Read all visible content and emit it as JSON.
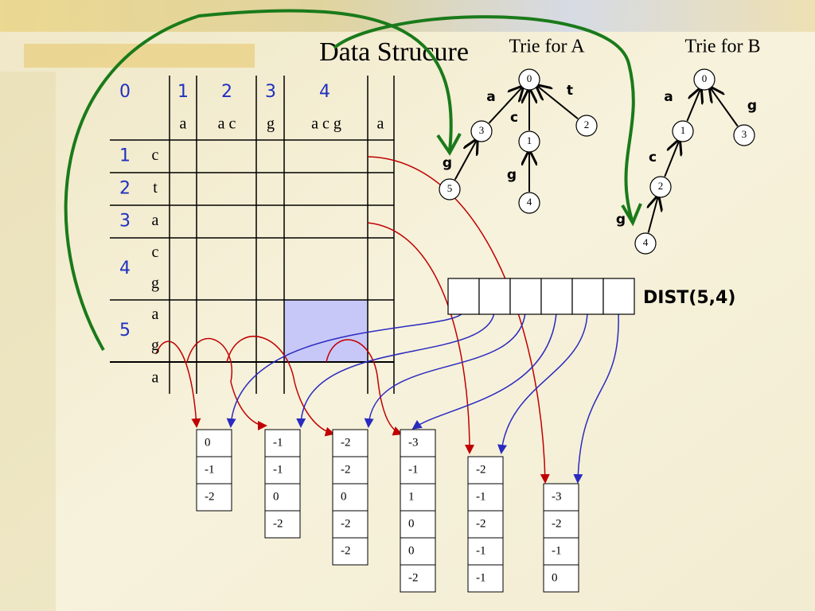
{
  "title": "Data Strucure",
  "table": {
    "column_numbers": [
      0,
      1,
      2,
      3,
      4
    ],
    "column_strings": [
      "a",
      "a c",
      "g",
      "a c g",
      "a"
    ],
    "rows": [
      {
        "number": 1,
        "chars": [
          "c"
        ]
      },
      {
        "number": 2,
        "chars": [
          "t"
        ]
      },
      {
        "number": 3,
        "chars": [
          "a"
        ]
      },
      {
        "number": 4,
        "chars": [
          "c",
          "g"
        ]
      },
      {
        "number": 5,
        "chars": [
          "a",
          "g"
        ]
      }
    ],
    "footer": "a"
  },
  "trie_a": {
    "title": "Trie for A",
    "nodes": [
      0,
      1,
      2,
      3,
      4,
      5
    ],
    "edge_labels": [
      "a",
      "t",
      "c",
      "g",
      "g"
    ]
  },
  "trie_b": {
    "title": "Trie for B",
    "nodes": [
      0,
      1,
      2,
      3,
      4
    ],
    "edge_labels": [
      "a",
      "g",
      "c",
      "g"
    ]
  },
  "dist_label": "DIST(5,4)",
  "vectors": [
    [
      0,
      -1,
      -2
    ],
    [
      -1,
      -1,
      0,
      -2
    ],
    [
      -2,
      -2,
      0,
      -2,
      -2
    ],
    [
      -3,
      -1,
      1,
      0,
      0,
      -2
    ],
    [
      -2,
      -1,
      -2,
      -1,
      -1
    ],
    [
      -3,
      -2,
      -1,
      0
    ]
  ]
}
